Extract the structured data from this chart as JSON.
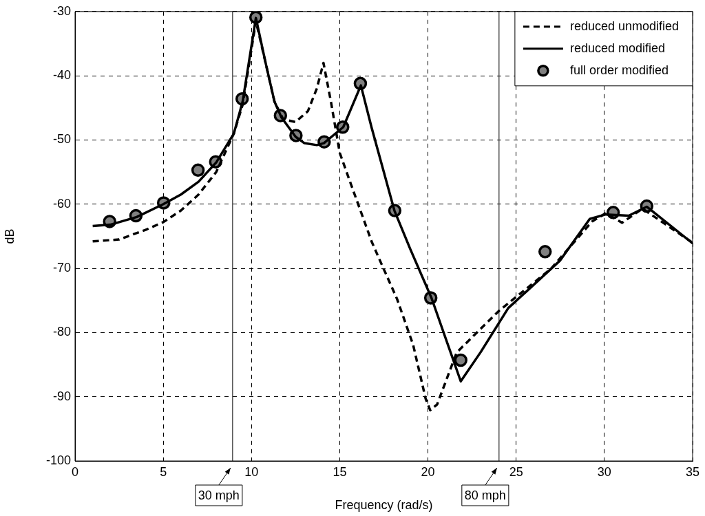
{
  "chart_data": {
    "type": "line",
    "xlabel": "Frequency (rad/s)",
    "ylabel": "dB",
    "xlim": [
      0,
      35
    ],
    "xticks": [
      0,
      5,
      10,
      15,
      20,
      25,
      30,
      35
    ],
    "ylim": [
      -100,
      -30
    ],
    "yticks": [
      -100,
      -90,
      -80,
      -70,
      -60,
      -50,
      -40,
      -30
    ],
    "grid": true,
    "legend": "top right",
    "series": [
      {
        "name": "reduced unmodified",
        "type": "line",
        "line_style": "dashed",
        "marker": "none",
        "color": "#000000",
        "x": [
          1,
          2.5,
          4,
          5,
          6,
          7,
          8,
          9,
          9.5,
          10.25,
          10.8,
          11.3,
          11.8,
          12.5,
          13.2,
          13.7,
          14.08,
          14.5,
          15,
          15.65,
          16.82,
          17.46,
          18.24,
          19.16,
          19.87,
          20.13,
          20.52,
          21.63,
          24.03,
          26.96,
          29.3,
          30.08,
          31,
          32.16,
          35
        ],
        "values": [
          -65.8,
          -65.5,
          -64,
          -62.8,
          -61,
          -58.5,
          -55,
          -49,
          -44.5,
          -31.5,
          -38,
          -44,
          -46.8,
          -47.2,
          -45.5,
          -42,
          -38,
          -44,
          -52,
          -57,
          -65.9,
          -69.9,
          -74.7,
          -81.9,
          -90.3,
          -92.1,
          -91.2,
          -83.1,
          -76.6,
          -70.1,
          -62.7,
          -61.4,
          -62.9,
          -60.7,
          -66
        ]
      },
      {
        "name": "reduced modified",
        "type": "line",
        "line_style": "solid",
        "marker": "none",
        "color": "#000000",
        "x": [
          1,
          2,
          3.5,
          5,
          6,
          7,
          8,
          9,
          9.5,
          10.25,
          10.8,
          11.3,
          11.7,
          12.5,
          13,
          13.7,
          14.1,
          15.2,
          16.2,
          16.8,
          17.5,
          18.1,
          19,
          20.2,
          21.86,
          23,
          24.55,
          27.48,
          29.17,
          30.08,
          31.38,
          32.4,
          35
        ],
        "values": [
          -63.4,
          -63.2,
          -62,
          -60,
          -58.5,
          -56.5,
          -53.5,
          -49,
          -44,
          -31,
          -38,
          -44,
          -46.5,
          -49.5,
          -50.5,
          -50.8,
          -50.5,
          -48,
          -41.5,
          -48,
          -55,
          -61,
          -67,
          -74.6,
          -87.6,
          -83,
          -76.2,
          -68.8,
          -62.3,
          -61.6,
          -61.8,
          -60.4,
          -66.1
        ]
      },
      {
        "name": "full order modified",
        "type": "scatter",
        "marker": "circle",
        "color": "#808080",
        "x": [
          1.96,
          3.45,
          5.02,
          6.97,
          7.97,
          9.47,
          10.25,
          11.64,
          12.52,
          14.12,
          15.17,
          16.17,
          18.12,
          20.16,
          21.86,
          26.64,
          30.5,
          32.4
        ],
        "values": [
          -62.7,
          -61.8,
          -59.8,
          -54.7,
          -53.4,
          -43.6,
          -30.9,
          -46.2,
          -49.3,
          -50.3,
          -48,
          -41.2,
          -61,
          -74.6,
          -84.3,
          -67.4,
          -61.3,
          -60.3
        ]
      }
    ],
    "ref_lines": [
      {
        "axis": "x",
        "value": 8.93,
        "label": "30 mph",
        "color": "#000000",
        "line_style": "solid"
      },
      {
        "axis": "x",
        "value": 24.03,
        "label": "80 mph",
        "color": "#000000",
        "line_style": "solid"
      }
    ]
  }
}
